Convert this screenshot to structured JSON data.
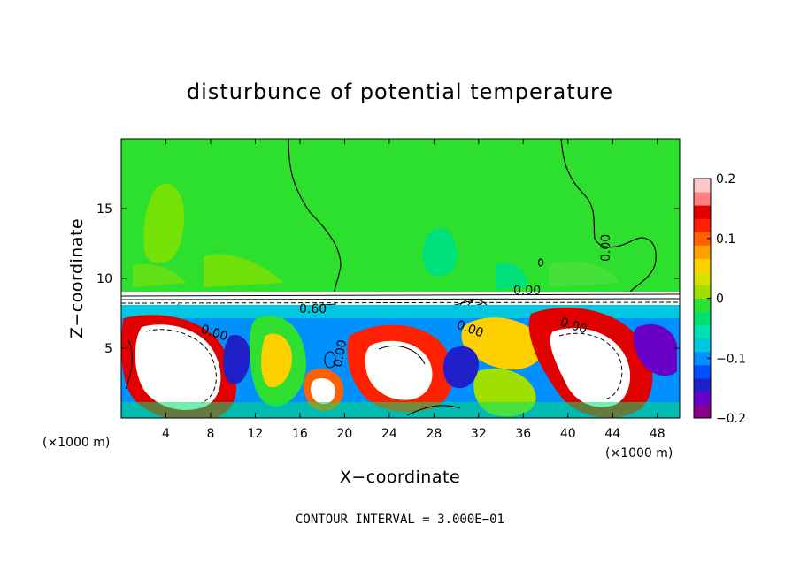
{
  "chart_data": {
    "type": "heatmap",
    "title": "disturbunce of potential temperature",
    "xlabel": "X−coordinate",
    "ylabel": "Z−coordinate",
    "x_units": "(×1000 m)",
    "z_units": "(×1000 m)",
    "xlim": [
      0,
      50
    ],
    "ylim": [
      0,
      20
    ],
    "x_ticks": [
      "4",
      "8",
      "12",
      "16",
      "20",
      "24",
      "28",
      "32",
      "36",
      "40",
      "44",
      "48"
    ],
    "y_ticks": [
      "5",
      "10",
      "15"
    ],
    "colorbar": {
      "range": [
        -0.2,
        0.2
      ],
      "labels": [
        "0.2",
        "0.1",
        "0",
        "−0.1",
        "−0.2"
      ],
      "colors": [
        "#8b008b",
        "#6a00c8",
        "#2020c8",
        "#0050ff",
        "#0090ff",
        "#00c8e0",
        "#00e0b0",
        "#00e070",
        "#30e030",
        "#a0e000",
        "#d8e000",
        "#ffd000",
        "#ffa000",
        "#ff6000",
        "#ff2000",
        "#e00000",
        "#ff8080",
        "#ffc8c8"
      ]
    },
    "contour_labels": [
      "0.00",
      "0.60"
    ],
    "contour_interval": "CONTOUR INTERVAL = 3.000E−01",
    "grid": false
  }
}
